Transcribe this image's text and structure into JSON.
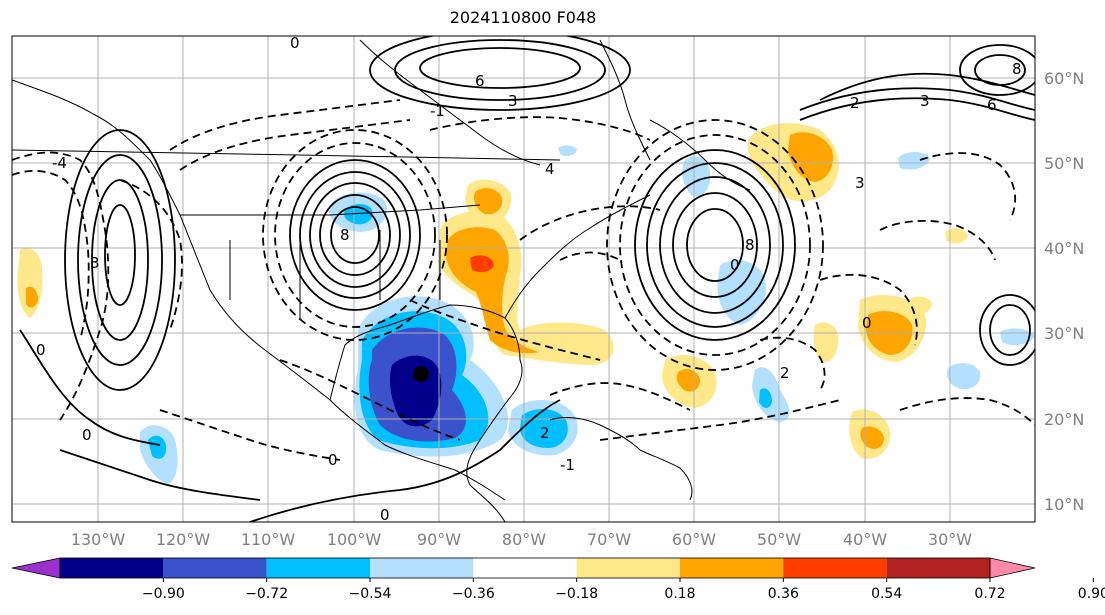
{
  "title": "2024110800 F048",
  "longitude_labels": [
    "130°W",
    "120°W",
    "110°W",
    "100°W",
    "90°W",
    "80°W",
    "70°W",
    "60°W",
    "50°W",
    "40°W",
    "30°W"
  ],
  "latitude_labels": [
    "60°N",
    "50°N",
    "40°N",
    "30°N",
    "20°N",
    "10°N"
  ],
  "colorbar": {
    "tick_labels": [
      "−0.90",
      "−0.72",
      "−0.54",
      "−0.36",
      "−0.18",
      "0.18",
      "0.36",
      "0.54",
      "0.72",
      "0.90"
    ],
    "colors": [
      "#9b30d0",
      "#00008b",
      "#3a52cc",
      "#00bfff",
      "#b3e0ff",
      "#ffffff",
      "#ffe88a",
      "#ffa500",
      "#ff3c00",
      "#b22222",
      "#ff88aa"
    ]
  },
  "contour_labels": [
    "0",
    "2",
    "4",
    "6",
    "3",
    "8",
    "-4",
    "-3",
    "-2",
    "-1"
  ],
  "markers": [
    {
      "name": "storm-center",
      "color": "#000000"
    }
  ]
}
